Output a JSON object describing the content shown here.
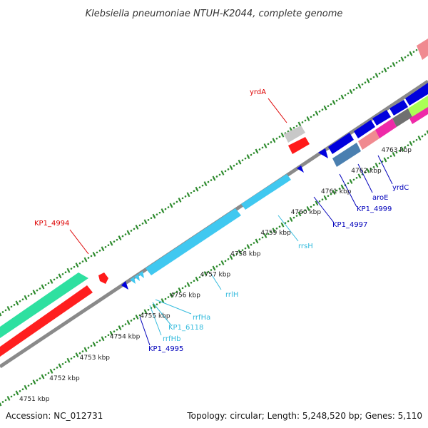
{
  "title": "Klebsiella pneumoniae NTUH-K2044, complete genome",
  "footer": {
    "accession": "Accession: NC_012731",
    "summary": "Topology: circular; Length: 5,248,520 bp; Genes: 5,110"
  },
  "colors": {
    "backbone": "#888888",
    "ticks": "#2e8b2e",
    "rrna": "#40c8f0",
    "cds_blue": "#0000dd",
    "label_red": "#dd0000",
    "label_blue": "#0000bb",
    "label_cyan": "#33bbdd"
  },
  "ticks": [
    {
      "label": "4751 kbp"
    },
    {
      "label": "4752 kbp"
    },
    {
      "label": "4753 kbp"
    },
    {
      "label": "4754 kbp"
    },
    {
      "label": "4755 kbp"
    },
    {
      "label": "4756 kbp"
    },
    {
      "label": "4757 kbp"
    },
    {
      "label": "4758 kbp"
    },
    {
      "label": "4759 kbp"
    },
    {
      "label": "4760 kbp"
    },
    {
      "label": "4761 kbp"
    },
    {
      "label": "4762 kbp"
    },
    {
      "label": "4763 kbp"
    }
  ],
  "gene_labels": [
    {
      "name": "yrdA",
      "color": "red"
    },
    {
      "name": "KP1_4994",
      "color": "red"
    },
    {
      "name": "rrsH",
      "color": "cyan"
    },
    {
      "name": "rrlH",
      "color": "cyan"
    },
    {
      "name": "rrfHa",
      "color": "cyan"
    },
    {
      "name": "KP1_6118",
      "color": "cyan"
    },
    {
      "name": "rrfHb",
      "color": "cyan"
    },
    {
      "name": "KP1_4995",
      "color": "blue"
    },
    {
      "name": "KP1_4997",
      "color": "blue"
    },
    {
      "name": "KP1_4999",
      "color": "blue"
    },
    {
      "name": "aroE",
      "color": "blue"
    },
    {
      "name": "yrdC",
      "color": "blue"
    }
  ]
}
